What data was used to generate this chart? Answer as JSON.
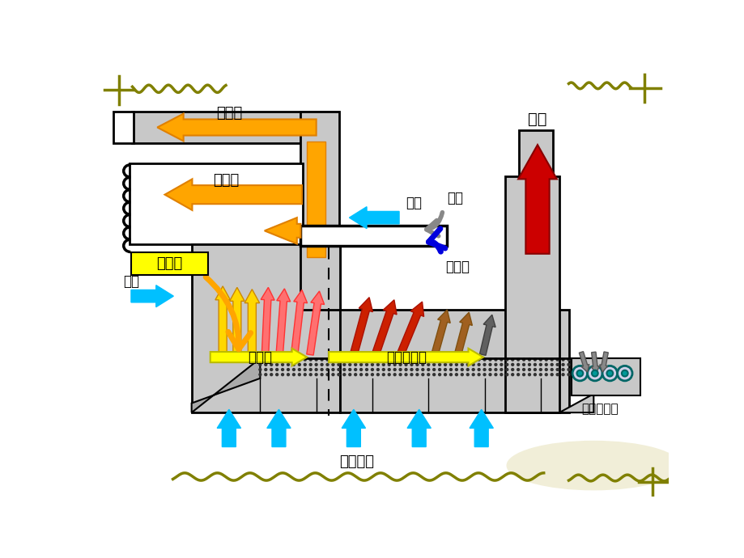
{
  "bg_color": "#ffffff",
  "gray": "#c8c8c8",
  "dark": "#000000",
  "white": "#ffffff",
  "orange": "#FFA500",
  "orange_dark": "#E08000",
  "yellow_bright": "#FFFF00",
  "yellow_gold": "#FFD700",
  "cyan": "#00C0FF",
  "red_dark": "#CC0000",
  "pink": "#FF7070",
  "crimson": "#C82000",
  "brown": "#A06020",
  "dark_gray_arrow": "#606060",
  "blue_dark": "#1010CC",
  "gray_arrow": "#888888",
  "olive": "#808000",
  "teal": "#007070",
  "labels": {
    "san_ci_feng": "三次风",
    "er_ci_feng": "二次风",
    "re_shu_liao": "热烤料",
    "lou_feng_left": "漏风",
    "lou_feng_right": "漏风",
    "ran_liao": "燃料",
    "yi_ci_feng": "一次风",
    "fei_qi": "废气",
    "hui_shou_qu": "回收区",
    "hou_leng_que": "后冷却区域",
    "leng_que_kong_qi": "冷却空气",
    "leng_que_hou_shu_liao": "冷却后烤料"
  }
}
